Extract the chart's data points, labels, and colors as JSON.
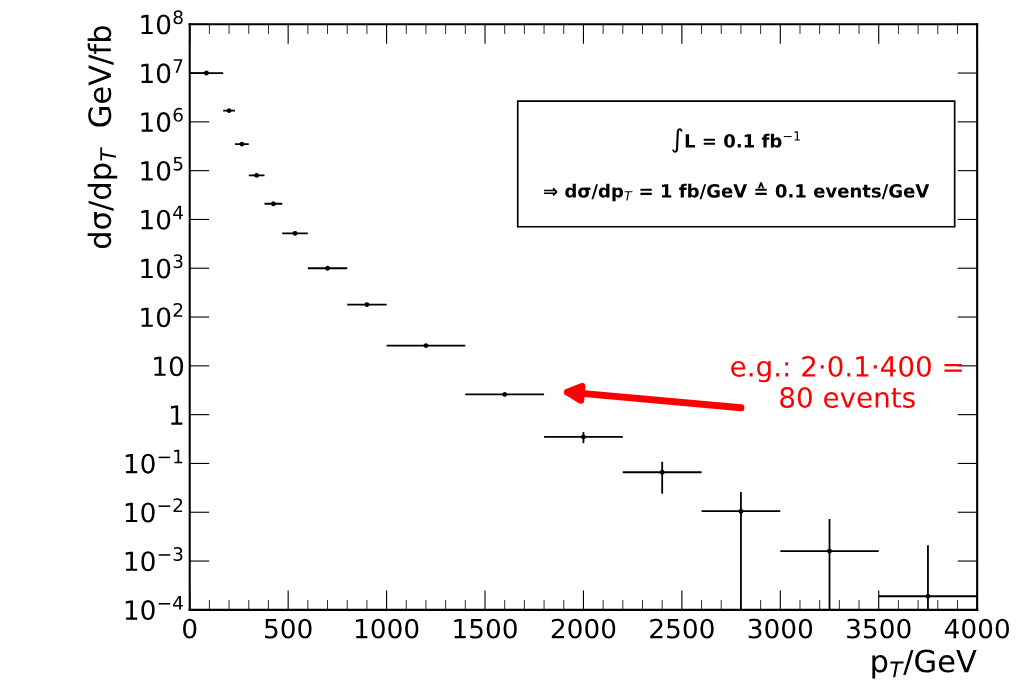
{
  "chart_data": {
    "type": "scatter",
    "xlabel": "p$_{T}$/GeV",
    "ylabel": "dσ/dp$_{T}$  GeV/fb",
    "x": [
      85,
      200,
      265,
      340,
      425,
      535,
      700,
      900,
      1200,
      1600,
      2000,
      2400,
      2800,
      3250,
      3750
    ],
    "series": [
      {
        "color": "#000000",
        "values": [
          10000000.0,
          1700000.0,
          350000.0,
          80000.0,
          21000.0,
          5200.0,
          1000,
          180,
          26,
          2.6,
          0.35,
          0.066,
          0.0105,
          0.0016,
          0.00019
        ],
        "xerrors": [
          [
            0,
            170
          ],
          [
            170,
            230
          ],
          [
            230,
            300
          ],
          [
            300,
            380
          ],
          [
            380,
            470
          ],
          [
            470,
            600
          ],
          [
            600,
            800
          ],
          [
            800,
            1000
          ],
          [
            1000,
            1400
          ],
          [
            1400,
            1800
          ],
          [
            1800,
            2200
          ],
          [
            2200,
            2600
          ],
          [
            2600,
            3000
          ],
          [
            3000,
            3500
          ],
          [
            3500,
            4000
          ]
        ],
        "errors": [
          null,
          null,
          null,
          null,
          null,
          null,
          null,
          null,
          null,
          0.16,
          0.09,
          0.042,
          [
            0.0001,
            0.026
          ],
          [
            0.0001,
            0.0073
          ],
          [
            0.0001,
            0.0021
          ]
        ]
      }
    ],
    "marker": "circle",
    "log": "y",
    "grid": false,
    "xlim": [
      0,
      4000
    ],
    "xticks": [
      0,
      500,
      1000,
      1500,
      2000,
      2500,
      3000,
      3500,
      4000
    ],
    "ylim": [
      0.0001,
      100000000.0
    ],
    "yticks": [
      {
        "value": 0.0001,
        "label": "10$^{−4}$"
      },
      {
        "value": 0.001,
        "label": "10$^{−3}$"
      },
      {
        "value": 0.01,
        "label": "10$^{−2}$"
      },
      {
        "value": 0.1,
        "label": "10$^{−1}$"
      },
      1,
      10,
      {
        "value": 100,
        "label": "10$^{2}$"
      },
      {
        "value": 1000,
        "label": "10$^{3}$"
      },
      {
        "value": 10000,
        "label": "10$^{4}$"
      },
      {
        "value": 100000,
        "label": "10$^{5}$"
      },
      {
        "value": 1000000,
        "label": "10$^{6}$"
      },
      {
        "value": 10000000,
        "label": "10$^{7}$"
      },
      {
        "value": 100000000,
        "label": "10$^{8}$"
      }
    ],
    "annotations": [
      "∫L = 0.1 fb$^{−1}$",
      "⇒ dσ/dp$_{T}$ = 1 fb/GeV ≙ 0.1 events/GeV",
      "e.g.: 2·0.1·400 =\n80 events"
    ]
  }
}
